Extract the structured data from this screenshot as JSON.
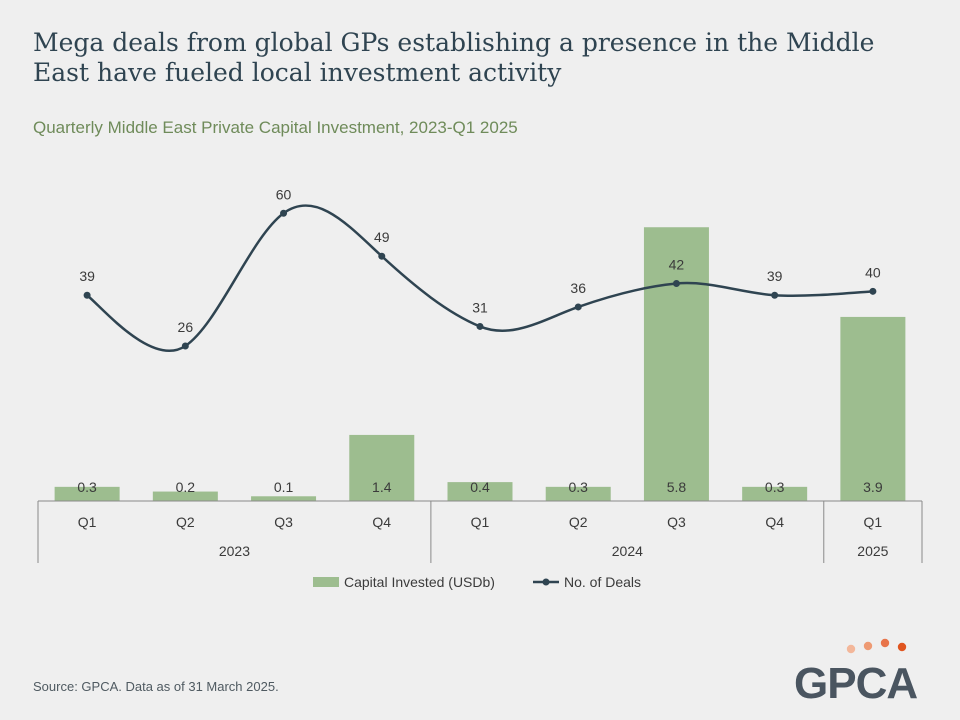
{
  "title": "Mega deals from global GPs establishing a presence in the Middle East have fueled local investment activity",
  "subtitle": "Quarterly Middle East Private Capital Investment, 2023-Q1 2025",
  "source": "Source: GPCA. Data as of 31 March 2025.",
  "logo_text": "GPCA",
  "colors": {
    "bar": "#9dbd8f",
    "line": "#2f4451",
    "text": "#3b3b3b",
    "title": "#2f4451",
    "subtitle": "#6f8b5a",
    "logo_dots": [
      "#f3b79a",
      "#ee9a73",
      "#e8744a",
      "#e0551f"
    ]
  },
  "chart_data": {
    "type": "bar",
    "categories": [
      "Q1",
      "Q2",
      "Q3",
      "Q4",
      "Q1",
      "Q2",
      "Q3",
      "Q4",
      "Q1"
    ],
    "groups": [
      {
        "label": "2023",
        "span": 4
      },
      {
        "label": "2024",
        "span": 4
      },
      {
        "label": "2025",
        "span": 1
      }
    ],
    "series": [
      {
        "name": "Capital Invested (USDb)",
        "type": "bar",
        "values": [
          0.3,
          0.2,
          0.1,
          1.4,
          0.4,
          0.3,
          5.8,
          0.3,
          3.9
        ],
        "labels": [
          "0.3",
          "0.2",
          "0.1",
          "1.4",
          "0.4",
          "0.3",
          "5.8",
          "0.3",
          "3.9"
        ]
      },
      {
        "name": "No. of Deals",
        "type": "line",
        "values": [
          39,
          26,
          60,
          49,
          31,
          36,
          42,
          39,
          40
        ],
        "labels": [
          "39",
          "26",
          "60",
          "49",
          "31",
          "36",
          "42",
          "39",
          "40"
        ]
      }
    ],
    "legend_position": "bottom",
    "grid": false
  }
}
